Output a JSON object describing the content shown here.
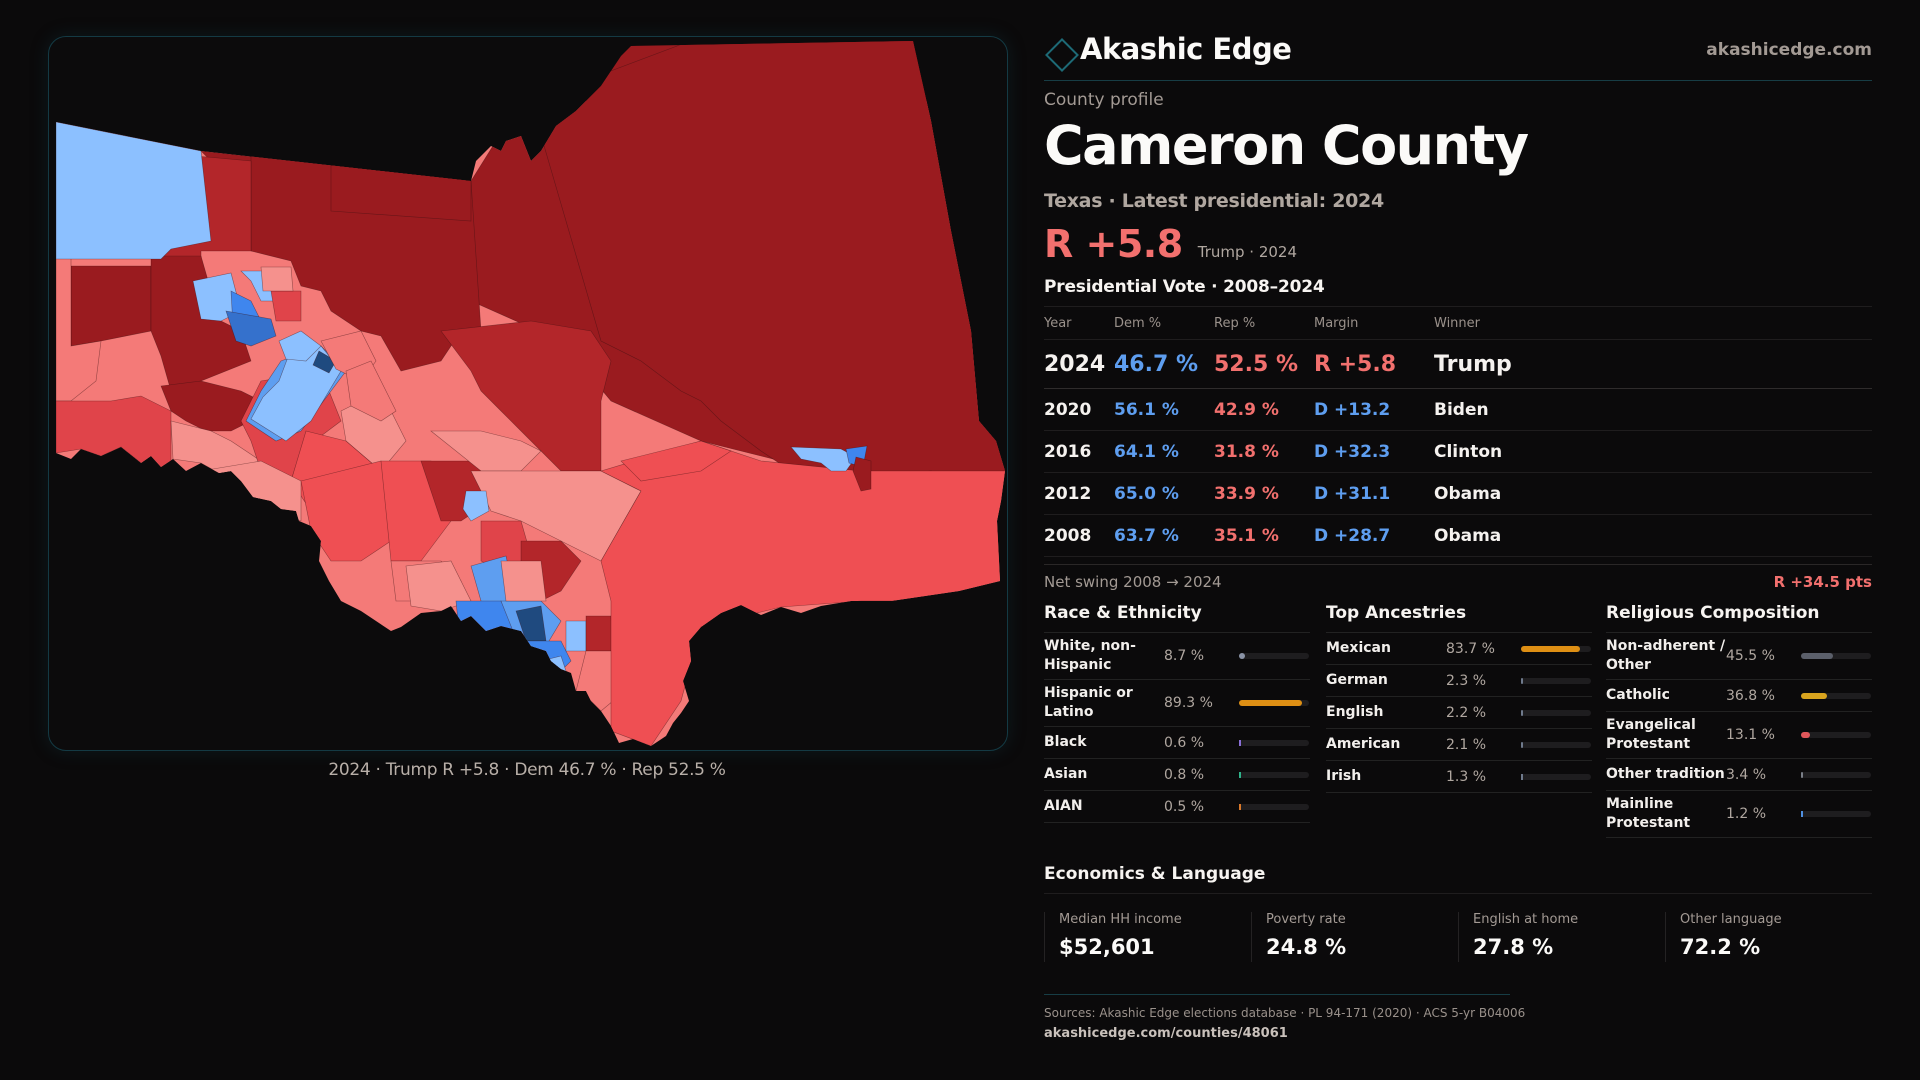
{
  "brand": {
    "name": "Akashic Edge",
    "url": "akashicedge.com",
    "icon": "diamond-logo-icon",
    "accent": "#1d6a76"
  },
  "header": {
    "eyebrow": "County profile",
    "title": "Cameron County",
    "subtitle": "Texas · Latest presidential: 2024",
    "margin": "R +5.8",
    "margin_context": "Trump · 2024"
  },
  "colors": {
    "rep": "#f2706e",
    "dem": "#5e9ef0"
  },
  "vote_section": {
    "title": "Presidential Vote · 2008–2024",
    "columns": [
      "Year",
      "Dem %",
      "Rep %",
      "Margin",
      "Winner"
    ],
    "rows": [
      {
        "year": "2024",
        "dem": "46.7 %",
        "rep": "52.5 %",
        "margin": "R +5.8",
        "party": "R",
        "winner": "Trump"
      },
      {
        "year": "2020",
        "dem": "56.1 %",
        "rep": "42.9 %",
        "margin": "D +13.2",
        "party": "D",
        "winner": "Biden"
      },
      {
        "year": "2016",
        "dem": "64.1 %",
        "rep": "31.8 %",
        "margin": "D +32.3",
        "party": "D",
        "winner": "Clinton"
      },
      {
        "year": "2012",
        "dem": "65.0 %",
        "rep": "33.9 %",
        "margin": "D +31.1",
        "party": "D",
        "winner": "Obama"
      },
      {
        "year": "2008",
        "dem": "63.7 %",
        "rep": "35.1 %",
        "margin": "D +28.7",
        "party": "D",
        "winner": "Obama"
      }
    ],
    "swing_label": "Net swing 2008 → 2024",
    "swing_value": "R +34.5 pts"
  },
  "demographics": {
    "race": {
      "title": "Race & Ethnicity",
      "items": [
        {
          "label": "White, non-Hispanic",
          "value": "8.7 %",
          "pct": 8.7,
          "color": "#8a93a6"
        },
        {
          "label": "Hispanic or Latino",
          "value": "89.3 %",
          "pct": 89.3,
          "color": "#de8f14"
        },
        {
          "label": "Black",
          "value": "0.6 %",
          "pct": 0.6,
          "color": "#8a6fd6"
        },
        {
          "label": "Asian",
          "value": "0.8 %",
          "pct": 0.8,
          "color": "#2fb38a"
        },
        {
          "label": "AIAN",
          "value": "0.5 %",
          "pct": 0.5,
          "color": "#d9782a"
        }
      ]
    },
    "ancestry": {
      "title": "Top Ancestries",
      "items": [
        {
          "label": "Mexican",
          "value": "83.7 %",
          "pct": 83.7,
          "color": "#de8f14"
        },
        {
          "label": "German",
          "value": "2.3 %",
          "pct": 2.3,
          "color": "#6f7a8c"
        },
        {
          "label": "English",
          "value": "2.2 %",
          "pct": 2.2,
          "color": "#6f7a8c"
        },
        {
          "label": "American",
          "value": "2.1 %",
          "pct": 2.1,
          "color": "#6f7a8c"
        },
        {
          "label": "Irish",
          "value": "1.3 %",
          "pct": 1.3,
          "color": "#6f7a8c"
        }
      ]
    },
    "religion": {
      "title": "Religious Composition",
      "items": [
        {
          "label": "Non-adherent / Other",
          "value": "45.5 %",
          "pct": 45.5,
          "color": "#5b5f6a"
        },
        {
          "label": "Catholic",
          "value": "36.8 %",
          "pct": 36.8,
          "color": "#d9a41e"
        },
        {
          "label": "Evangelical Protestant",
          "value": "13.1 %",
          "pct": 13.1,
          "color": "#e0575a"
        },
        {
          "label": "Other tradition",
          "value": "3.4 %",
          "pct": 3.4,
          "color": "#7b7f88"
        },
        {
          "label": "Mainline Protestant",
          "value": "1.2 %",
          "pct": 1.2,
          "color": "#4f8fe0"
        }
      ]
    }
  },
  "economics": {
    "title": "Economics & Language",
    "items": [
      {
        "label": "Median HH income",
        "value": "$52,601"
      },
      {
        "label": "Poverty rate",
        "value": "24.8 %"
      },
      {
        "label": "English at home",
        "value": "27.8 %"
      },
      {
        "label": "Other language",
        "value": "72.2 %"
      }
    ]
  },
  "footer": {
    "sources": "Sources: Akashic Edge elections database · PL 94-171 (2020) · ACS 5-yr B04006",
    "url": "akashicedge.com/counties/48061"
  },
  "map": {
    "caption": "2024 · Trump R +5.8 · Dem 46.7 % · Rep 52.5 %",
    "legend_scale": {
      "rep": [
        "#9a1b1f",
        "#b3262a",
        "#e0444a",
        "#ef4f53",
        "#f47a78",
        "#f5918d"
      ],
      "dem": [
        "#8cc0ff",
        "#5e9ef0",
        "#3f86ee",
        "#3571cc",
        "#1f4a7f"
      ]
    }
  }
}
